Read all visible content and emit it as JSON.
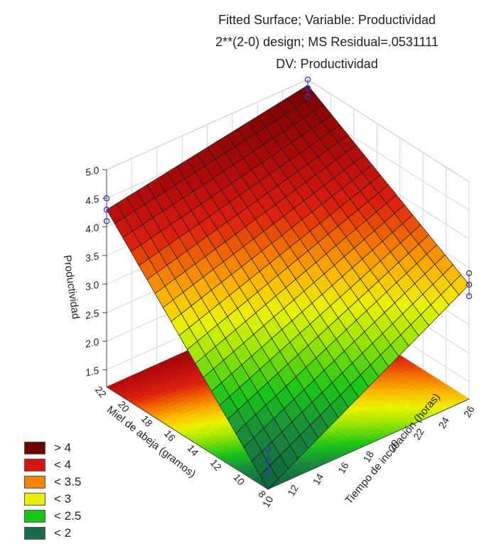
{
  "chart_data": {
    "type": "surface3d",
    "title_lines": [
      "Fitted Surface; Variable: Productividad",
      "2**(2-0) design; MS Residual=.0531111",
      "DV: Productividad"
    ],
    "x_axis": {
      "label": "Tiempo de incubación (horas)",
      "range": [
        10,
        26
      ],
      "ticks": [
        "10",
        "12",
        "14",
        "16",
        "18",
        "20",
        "22",
        "24",
        "26"
      ]
    },
    "y_axis": {
      "label": "Miel de abeja (gramos)",
      "range": [
        8,
        22
      ],
      "ticks": [
        "8",
        "10",
        "12",
        "14",
        "16",
        "18",
        "20",
        "22"
      ]
    },
    "z_axis": {
      "label": "Productividad",
      "range": [
        1.2,
        5.0
      ],
      "ticks": [
        "1.5",
        "2.0",
        "2.5",
        "3.0",
        "3.5",
        "4.0",
        "4.5",
        "5.0"
      ]
    },
    "surface_corners": [
      {
        "tiempo": 10,
        "miel": 8,
        "productividad": 1.2
      },
      {
        "tiempo": 26,
        "miel": 8,
        "productividad": 3.2
      },
      {
        "tiempo": 10,
        "miel": 22,
        "productividad": 4.3
      },
      {
        "tiempo": 26,
        "miel": 22,
        "productividad": 4.9
      }
    ],
    "design_points": [
      {
        "tiempo": 10,
        "miel": 8,
        "productividad": [
          1.5,
          1.7,
          1.9
        ]
      },
      {
        "tiempo": 26,
        "miel": 8,
        "productividad": [
          3.0,
          3.2,
          3.4
        ]
      },
      {
        "tiempo": 10,
        "miel": 22,
        "productividad": [
          4.1,
          4.3,
          4.5
        ]
      },
      {
        "tiempo": 26,
        "miel": 22,
        "productividad": [
          4.7,
          4.85,
          5.0
        ]
      }
    ],
    "legend": [
      {
        "label": "> 4",
        "color": "#6e0000"
      },
      {
        "label": "< 4",
        "color": "#d81512"
      },
      {
        "label": "< 3.5",
        "color": "#fc8200"
      },
      {
        "label": "< 3",
        "color": "#e6f000"
      },
      {
        "label": "< 2.5",
        "color": "#16c516"
      },
      {
        "label": "< 2",
        "color": "#1a6b49"
      }
    ],
    "legend_position": "bottom-left",
    "grid": true,
    "point_color": "#3a3aa6"
  }
}
